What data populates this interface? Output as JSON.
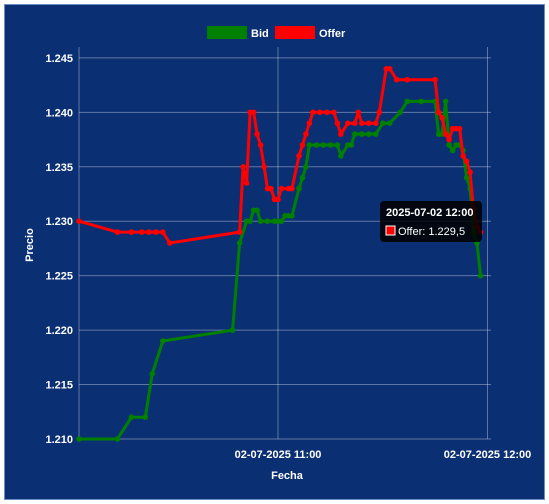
{
  "chart_data": {
    "type": "line",
    "xlabel": "Fecha",
    "ylabel": "Precio",
    "x_ticks": [
      "02-07-2025 11:00",
      "02-07-2025 12:00"
    ],
    "y_ticks": [
      "1.210",
      "1.215",
      "1.220",
      "1.225",
      "1.230",
      "1.235",
      "1.240",
      "1.245"
    ],
    "x_range": [
      "2025-07-02 10:03",
      "2025-07-02 12:01"
    ],
    "ylim": [
      1.21,
      1.246
    ],
    "grid": true,
    "legend_position": "top-center",
    "series": [
      {
        "name": "Bid",
        "color": "#008000",
        "points": [
          [
            "10:03",
            1.21
          ],
          [
            "10:14",
            1.21
          ],
          [
            "10:18",
            1.212
          ],
          [
            "10:22",
            1.212
          ],
          [
            "10:24",
            1.216
          ],
          [
            "10:27",
            1.219
          ],
          [
            "10:47",
            1.22
          ],
          [
            "10:49",
            1.228
          ],
          [
            "10:51",
            1.23
          ],
          [
            "10:52",
            1.23
          ],
          [
            "10:53",
            1.231
          ],
          [
            "10:54",
            1.231
          ],
          [
            "10:55",
            1.23
          ],
          [
            "10:57",
            1.23
          ],
          [
            "10:59",
            1.23
          ],
          [
            "11:00",
            1.23
          ],
          [
            "11:01",
            1.23
          ],
          [
            "11:02",
            1.2305
          ],
          [
            "11:03",
            1.2305
          ],
          [
            "11:04",
            1.2305
          ],
          [
            "11:06",
            1.233
          ],
          [
            "11:07",
            1.234
          ],
          [
            "11:08",
            1.235
          ],
          [
            "11:09",
            1.237
          ],
          [
            "11:11",
            1.237
          ],
          [
            "11:13",
            1.237
          ],
          [
            "11:15",
            1.237
          ],
          [
            "11:17",
            1.237
          ],
          [
            "11:18",
            1.236
          ],
          [
            "11:20",
            1.237
          ],
          [
            "11:21",
            1.237
          ],
          [
            "11:22",
            1.238
          ],
          [
            "11:24",
            1.238
          ],
          [
            "11:26",
            1.238
          ],
          [
            "11:28",
            1.238
          ],
          [
            "11:30",
            1.239
          ],
          [
            "11:32",
            1.239
          ],
          [
            "11:35",
            1.24
          ],
          [
            "11:37",
            1.241
          ],
          [
            "11:41",
            1.241
          ],
          [
            "11:45",
            1.241
          ],
          [
            "11:46",
            1.238
          ],
          [
            "11:47",
            1.238
          ],
          [
            "11:48",
            1.241
          ],
          [
            "11:49",
            1.237
          ],
          [
            "11:50",
            1.2365
          ],
          [
            "11:51",
            1.237
          ],
          [
            "11:52",
            1.237
          ],
          [
            "11:53",
            1.2365
          ],
          [
            "11:54",
            1.234
          ],
          [
            "11:55",
            1.233
          ],
          [
            "11:56",
            1.229
          ],
          [
            "11:57",
            1.228
          ],
          [
            "11:58",
            1.225
          ]
        ]
      },
      {
        "name": "Offer",
        "color": "#ff0000",
        "points": [
          [
            "10:03",
            1.23
          ],
          [
            "10:14",
            1.229
          ],
          [
            "10:18",
            1.229
          ],
          [
            "10:21",
            1.229
          ],
          [
            "10:23",
            1.229
          ],
          [
            "10:25",
            1.229
          ],
          [
            "10:27",
            1.229
          ],
          [
            "10:29",
            1.228
          ],
          [
            "10:49",
            1.229
          ],
          [
            "10:50",
            1.235
          ],
          [
            "10:51",
            1.2335
          ],
          [
            "10:52",
            1.24
          ],
          [
            "10:53",
            1.24
          ],
          [
            "10:54",
            1.238
          ],
          [
            "10:55",
            1.237
          ],
          [
            "10:56",
            1.235
          ],
          [
            "10:57",
            1.233
          ],
          [
            "10:58",
            1.233
          ],
          [
            "10:59",
            1.232
          ],
          [
            "11:00",
            1.232
          ],
          [
            "11:01",
            1.233
          ],
          [
            "11:03",
            1.233
          ],
          [
            "11:04",
            1.233
          ],
          [
            "11:06",
            1.236
          ],
          [
            "11:07",
            1.237
          ],
          [
            "11:08",
            1.238
          ],
          [
            "11:09",
            1.239
          ],
          [
            "11:10",
            1.24
          ],
          [
            "11:12",
            1.24
          ],
          [
            "11:14",
            1.24
          ],
          [
            "11:16",
            1.24
          ],
          [
            "11:17",
            1.239
          ],
          [
            "11:18",
            1.238
          ],
          [
            "11:20",
            1.239
          ],
          [
            "11:22",
            1.239
          ],
          [
            "11:23",
            1.24
          ],
          [
            "11:24",
            1.239
          ],
          [
            "11:26",
            1.239
          ],
          [
            "11:28",
            1.239
          ],
          [
            "11:29",
            1.24
          ],
          [
            "11:31",
            1.244
          ],
          [
            "11:32",
            1.244
          ],
          [
            "11:34",
            1.243
          ],
          [
            "11:37",
            1.243
          ],
          [
            "11:45",
            1.243
          ],
          [
            "11:46",
            1.24
          ],
          [
            "11:47",
            1.2395
          ],
          [
            "11:48",
            1.238
          ],
          [
            "11:49",
            1.2375
          ],
          [
            "11:50",
            1.2385
          ],
          [
            "11:51",
            1.2385
          ],
          [
            "11:52",
            1.2385
          ],
          [
            "11:53",
            1.236
          ],
          [
            "11:54",
            1.2355
          ],
          [
            "11:55",
            1.2345
          ],
          [
            "11:56",
            1.231
          ],
          [
            "11:57",
            1.2295
          ],
          [
            "11:58",
            1.229
          ]
        ]
      }
    ],
    "tooltip": {
      "title": "2025-07-02 12:00",
      "label": "Offer: 1.229,5"
    }
  }
}
